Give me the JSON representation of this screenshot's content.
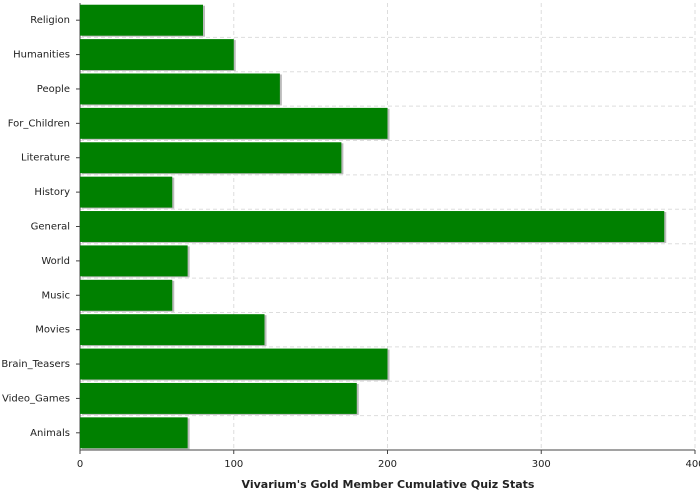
{
  "chart_data": {
    "type": "bar",
    "orientation": "horizontal",
    "xlabel": "Vivarium's Gold Member Cumulative Quiz Stats",
    "categories": [
      "Religion",
      "Humanities",
      "People",
      "For_Children",
      "Literature",
      "History",
      "General",
      "World",
      "Music",
      "Movies",
      "Brain_Teasers",
      "Video_Games",
      "Animals"
    ],
    "values": [
      80,
      100,
      130,
      200,
      170,
      60,
      380,
      70,
      60,
      120,
      200,
      180,
      70
    ],
    "color": "#008000",
    "xlim": [
      0,
      400
    ],
    "xticks": [
      0,
      100,
      200,
      300,
      400
    ],
    "grid": true
  }
}
